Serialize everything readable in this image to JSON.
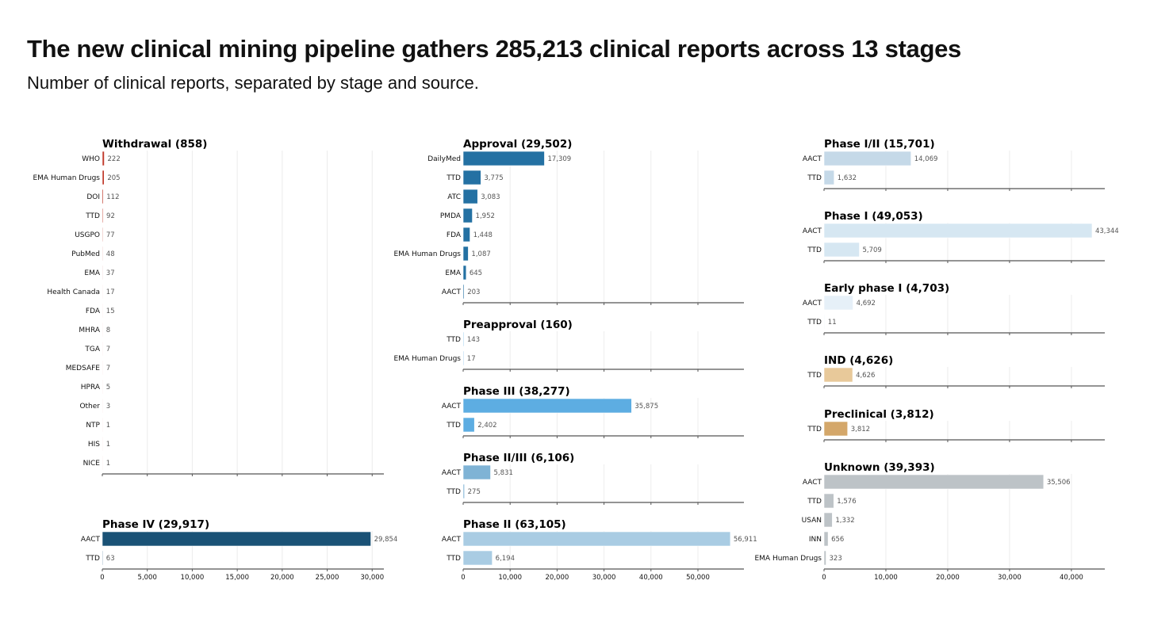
{
  "header": {
    "title": "The new clinical mining pipeline gathers 285,213 clinical reports across 13 stages",
    "subtitle": "Number of clinical reports, separated by stage and source."
  },
  "chart_data": {
    "type": "bar",
    "orientation": "horizontal",
    "title": "The new clinical mining pipeline gathers 285,213 clinical reports across 13 stages",
    "subtitle": "Number of clinical reports, separated by stage and source.",
    "grid": true,
    "columns": [
      {
        "xlim": [
          0,
          31300
        ],
        "xticks": [
          0,
          5000,
          10000,
          15000,
          20000,
          25000,
          30000
        ],
        "xtick_labels": [
          "0",
          "5,000",
          "10,000",
          "15,000",
          "20,000",
          "25,000",
          "30,000"
        ],
        "panels": [
          {
            "title": "Withdrawal (858)",
            "color": "#c0392b",
            "categories": [
              "WHO",
              "EMA Human Drugs",
              "DOI",
              "TTD",
              "USGPO",
              "PubMed",
              "EMA",
              "Health Canada",
              "FDA",
              "MHRA",
              "TGA",
              "MEDSAFE",
              "HPRA",
              "Other",
              "NTP",
              "HIS",
              "NICE"
            ],
            "values": [
              222,
              205,
              112,
              92,
              77,
              48,
              37,
              17,
              15,
              8,
              7,
              7,
              5,
              3,
              1,
              1,
              1
            ],
            "labels": [
              "222",
              "205",
              "112",
              "92",
              "77",
              "48",
              "37",
              "17",
              "15",
              "8",
              "7",
              "7",
              "5",
              "3",
              "1",
              "1",
              "1"
            ]
          },
          {
            "title": "Phase IV (29,917)",
            "color": "#1a5276",
            "categories": [
              "AACT",
              "TTD"
            ],
            "values": [
              29854,
              63
            ],
            "labels": [
              "29,854",
              "63"
            ]
          }
        ]
      },
      {
        "xlim": [
          0,
          59800
        ],
        "xticks": [
          0,
          10000,
          20000,
          30000,
          40000,
          50000
        ],
        "xtick_labels": [
          "0",
          "10,000",
          "20,000",
          "30,000",
          "40,000",
          "50,000"
        ],
        "panels": [
          {
            "title": "Approval (29,502)",
            "color": "#2471a3",
            "categories": [
              "DailyMed",
              "TTD",
              "ATC",
              "PMDA",
              "FDA",
              "EMA Human Drugs",
              "EMA",
              "AACT"
            ],
            "values": [
              17309,
              3775,
              3083,
              1952,
              1448,
              1087,
              645,
              203
            ],
            "labels": [
              "17,309",
              "3,775",
              "3,083",
              "1,952",
              "1,448",
              "1,087",
              "645",
              "203"
            ]
          },
          {
            "title": "Preapproval (160)",
            "color": "#3498db",
            "categories": [
              "TTD",
              "EMA Human Drugs"
            ],
            "values": [
              143,
              17
            ],
            "labels": [
              "143",
              "17"
            ]
          },
          {
            "title": "Phase III (38,277)",
            "color": "#5dade2",
            "categories": [
              "AACT",
              "TTD"
            ],
            "values": [
              35875,
              2402
            ],
            "labels": [
              "35,875",
              "2,402"
            ]
          },
          {
            "title": "Phase II/III (6,106)",
            "color": "#7fb3d5",
            "categories": [
              "AACT",
              "TTD"
            ],
            "values": [
              5831,
              275
            ],
            "labels": [
              "5,831",
              "275"
            ]
          },
          {
            "title": "Phase II (63,105)",
            "color": "#a9cce3",
            "categories": [
              "AACT",
              "TTD"
            ],
            "values": [
              56911,
              6194
            ],
            "labels": [
              "56,911",
              "6,194"
            ]
          }
        ]
      },
      {
        "xlim": [
          0,
          45400
        ],
        "xticks": [
          0,
          10000,
          20000,
          30000,
          40000
        ],
        "xtick_labels": [
          "0",
          "10,000",
          "20,000",
          "30,000",
          "40,000"
        ],
        "panels": [
          {
            "title": "Phase I/II (15,701)",
            "color": "#c5d9e8",
            "categories": [
              "AACT",
              "TTD"
            ],
            "values": [
              14069,
              1632
            ],
            "labels": [
              "14,069",
              "1,632"
            ]
          },
          {
            "title": "Phase I (49,053)",
            "color": "#d6e7f2",
            "categories": [
              "AACT",
              "TTD"
            ],
            "values": [
              43344,
              5709
            ],
            "labels": [
              "43,344",
              "5,709"
            ]
          },
          {
            "title": "Early phase I (4,703)",
            "color": "#e6f0f8",
            "categories": [
              "AACT",
              "TTD"
            ],
            "values": [
              4692,
              11
            ],
            "labels": [
              "4,692",
              "11"
            ]
          },
          {
            "title": "IND (4,626)",
            "color": "#e8c99a",
            "categories": [
              "TTD"
            ],
            "values": [
              4626
            ],
            "labels": [
              "4,626"
            ]
          },
          {
            "title": "Preclinical (3,812)",
            "color": "#d4a76a",
            "categories": [
              "TTD"
            ],
            "values": [
              3812
            ],
            "labels": [
              "3,812"
            ]
          },
          {
            "title": "Unknown (39,393)",
            "color": "#bdc3c7",
            "categories": [
              "AACT",
              "TTD",
              "USAN",
              "INN",
              "EMA Human Drugs"
            ],
            "values": [
              35506,
              1576,
              1332,
              656,
              323
            ],
            "labels": [
              "35,506",
              "1,576",
              "1,332",
              "656",
              "323"
            ]
          }
        ]
      }
    ]
  }
}
